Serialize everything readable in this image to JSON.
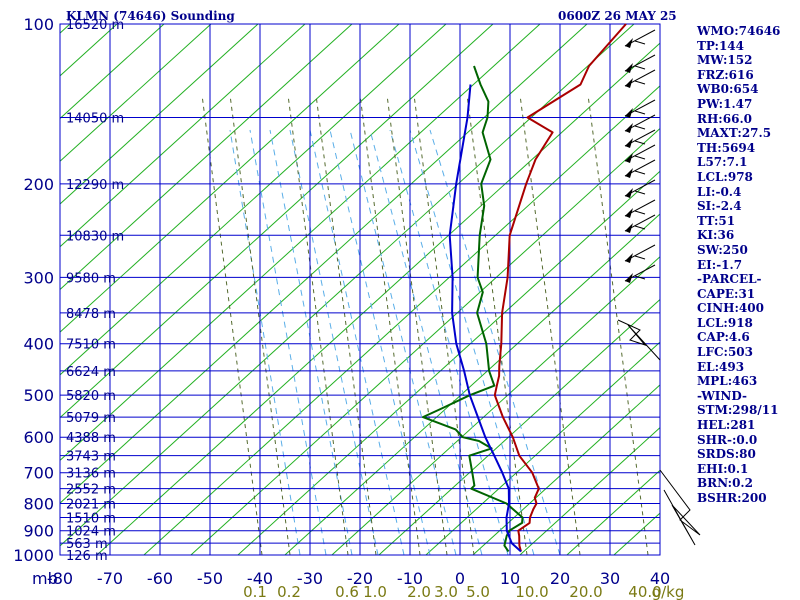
{
  "header": {
    "station": "KLMN (74646) Sounding",
    "time": "0600Z 26 MAY 25"
  },
  "indices": [
    "WMO:74646",
    "TP:144",
    "MW:152",
    "FRZ:616",
    "WB0:654",
    "PW:1.47",
    "RH:66.0",
    "MAXT:27.5",
    "TH:5694",
    "L57:7.1",
    "LCL:978",
    "LI:-0.4",
    "SI:-2.4",
    "TT:51",
    "KI:36",
    "SW:250",
    "EI:-1.7",
    "-PARCEL-",
    "CAPE:31",
    "CINH:400",
    "LCL:918",
    "CAP:4.6",
    "LFC:503",
    "EL:493",
    "MPL:463",
    "-WIND-",
    "STM:298/11",
    "HEL:281",
    "SHR-:0.0",
    "SRDS:80",
    "EHI:0.1",
    "BRN:0.2",
    "BSHR:200"
  ],
  "chart_data": {
    "type": "skew-t",
    "pressure_label": "mb",
    "pressure_levels": [
      100,
      200,
      300,
      400,
      500,
      600,
      700,
      800,
      900,
      1000
    ],
    "pressure_ticks": [
      "100",
      "200",
      "300",
      "400",
      "500",
      "600",
      "700",
      "800",
      "900",
      "1000"
    ],
    "temp_ticks": [
      -80,
      -70,
      -60,
      -50,
      -40,
      -30,
      -20,
      -10,
      0,
      10,
      20,
      30,
      40
    ],
    "mixing_ratio_unit": "g/kg",
    "mixing_ratio_ticks": [
      "0.1",
      "0.2",
      "0.6",
      "1.0",
      "2.0",
      "3.0",
      "5.0",
      "10.0",
      "20.0",
      "40.0"
    ],
    "height_labels": [
      {
        "p": 100,
        "label": "16520 m"
      },
      {
        "p": 150,
        "label": "14050 m"
      },
      {
        "p": 200,
        "label": "12290 m"
      },
      {
        "p": 250,
        "label": "10830 m"
      },
      {
        "p": 300,
        "label": "9580 m"
      },
      {
        "p": 350,
        "label": "8478 m"
      },
      {
        "p": 400,
        "label": "7510 m"
      },
      {
        "p": 450,
        "label": "6624 m"
      },
      {
        "p": 500,
        "label": "5820 m"
      },
      {
        "p": 550,
        "label": "5079 m"
      },
      {
        "p": 600,
        "label": "4388 m"
      },
      {
        "p": 650,
        "label": "3743 m"
      },
      {
        "p": 700,
        "label": "3136 m"
      },
      {
        "p": 750,
        "label": "2552 m"
      },
      {
        "p": 800,
        "label": "2021 m"
      },
      {
        "p": 850,
        "label": "1510 m"
      },
      {
        "p": 900,
        "label": "1024 m"
      },
      {
        "p": 950,
        "label": "563 m"
      },
      {
        "p": 1000,
        "label": "126 m"
      }
    ],
    "series": [
      {
        "color": "#aa0000",
        "points": [
          [
            985,
            21.5
          ],
          [
            960,
            20
          ],
          [
            920,
            18
          ],
          [
            900,
            16.8
          ],
          [
            870,
            17.5
          ],
          [
            850,
            16.5
          ],
          [
            820,
            15.5
          ],
          [
            800,
            15
          ],
          [
            780,
            13.5
          ],
          [
            750,
            12.5
          ],
          [
            700,
            8
          ],
          [
            650,
            2
          ],
          [
            600,
            -3
          ],
          [
            550,
            -9
          ],
          [
            500,
            -15
          ],
          [
            480,
            -16.5
          ],
          [
            460,
            -18
          ],
          [
            440,
            -20
          ],
          [
            400,
            -24
          ],
          [
            350,
            -30
          ],
          [
            300,
            -36
          ],
          [
            250,
            -44
          ],
          [
            200,
            -51
          ],
          [
            180,
            -54
          ],
          [
            160,
            -56
          ],
          [
            150,
            -64
          ],
          [
            130,
            -60
          ],
          [
            120,
            -62
          ],
          [
            100,
            -63
          ]
        ]
      },
      {
        "color": "#006400",
        "points": [
          [
            985,
            19
          ],
          [
            960,
            17
          ],
          [
            920,
            15.5
          ],
          [
            900,
            15
          ],
          [
            870,
            16
          ],
          [
            850,
            15
          ],
          [
            800,
            9
          ],
          [
            750,
            -1
          ],
          [
            740,
            -1
          ],
          [
            700,
            -4
          ],
          [
            650,
            -8
          ],
          [
            630,
            -5
          ],
          [
            610,
            -9
          ],
          [
            600,
            -13
          ],
          [
            580,
            -16
          ],
          [
            550,
            -25
          ],
          [
            530,
            -23
          ],
          [
            500,
            -20
          ],
          [
            480,
            -17
          ],
          [
            450,
            -21
          ],
          [
            400,
            -27
          ],
          [
            350,
            -35
          ],
          [
            320,
            -38
          ],
          [
            300,
            -42
          ],
          [
            250,
            -50
          ],
          [
            220,
            -55
          ],
          [
            200,
            -60
          ],
          [
            180,
            -63
          ],
          [
            160,
            -70
          ],
          [
            150,
            -72
          ],
          [
            140,
            -75
          ],
          [
            130,
            -80
          ],
          [
            120,
            -85
          ]
        ]
      },
      {
        "color": "#0000cd",
        "points": [
          [
            985,
            21.5
          ],
          [
            950,
            18
          ],
          [
            900,
            14.5
          ],
          [
            850,
            11.8
          ],
          [
            800,
            9.5
          ],
          [
            750,
            6.5
          ],
          [
            700,
            2
          ],
          [
            650,
            -3
          ],
          [
            600,
            -8.5
          ],
          [
            550,
            -14
          ],
          [
            500,
            -20
          ],
          [
            450,
            -26
          ],
          [
            400,
            -33
          ],
          [
            350,
            -40
          ],
          [
            300,
            -47
          ],
          [
            250,
            -56
          ],
          [
            200,
            -65
          ],
          [
            150,
            -76
          ],
          [
            130,
            -82
          ]
        ]
      }
    ],
    "wind_profile": {
      "surface_speed": 11,
      "surface_direction": 298
    }
  }
}
